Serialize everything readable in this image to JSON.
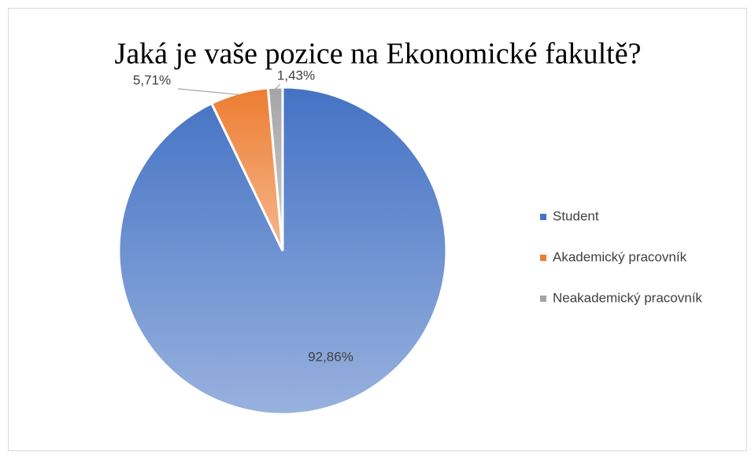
{
  "chart_data": {
    "type": "pie",
    "title": "Jaká je vaše pozice na Ekonomické fakultě?",
    "categories": [
      "Student",
      "Akademický pracovník",
      "Neakademický pracovník"
    ],
    "values": [
      92.86,
      5.71,
      1.43
    ],
    "value_labels": [
      "92,86%",
      "5,71%",
      "1,43%"
    ],
    "colors": [
      "#4472c4",
      "#ed7d31",
      "#a5a5a5"
    ],
    "legend": "right"
  }
}
